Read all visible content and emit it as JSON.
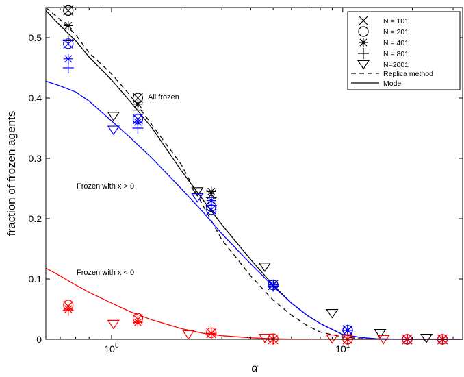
{
  "chart_data": {
    "type": "scatter",
    "xlabel": "α",
    "ylabel": "fraction of frozen agents",
    "xscale": "log",
    "xlim": [
      0.52,
      33
    ],
    "ylim": [
      0,
      0.55
    ],
    "yticks": [
      "0",
      "0.1",
      "0.2",
      "0.3",
      "0.4",
      "0.5"
    ],
    "xticks": [
      {
        "value": 1,
        "base": "10",
        "exp": "0"
      },
      {
        "value": 10,
        "base": "10",
        "exp": "1"
      }
    ],
    "grid": false,
    "legend_position": "top-right",
    "legend": [
      {
        "label": "N = 101",
        "marker": "x"
      },
      {
        "label": "N = 201",
        "marker": "circle"
      },
      {
        "label": "N = 401",
        "marker": "star"
      },
      {
        "label": "N = 801",
        "marker": "plus"
      },
      {
        "label": "N=2001",
        "marker": "triangle-down"
      },
      {
        "label": "Replica method",
        "line": "dashed"
      },
      {
        "label": "Model",
        "line": "solid"
      }
    ],
    "annotations": [
      {
        "text": "All frozen",
        "x": 1.55,
        "y": 0.4
      },
      {
        "text": "Frozen with x > 0",
        "x": 0.62,
        "y": 0.245
      },
      {
        "text": "Frozen with x < 0",
        "x": 0.62,
        "y": 0.11
      }
    ],
    "colors": {
      "all": "#000000",
      "positive": "#0000ff",
      "negative": "#ff0000"
    },
    "curves": [
      {
        "name": "Replica method",
        "color": "#000000",
        "dash": true,
        "x": [
          0.52,
          0.6,
          0.7,
          0.8,
          1.0,
          1.2,
          1.5,
          2.0,
          2.5,
          3.0,
          4.0,
          5.0,
          6.0,
          7.0,
          8.0,
          10.0,
          12.0,
          14.0
        ],
        "y": [
          0.55,
          0.53,
          0.505,
          0.475,
          0.44,
          0.405,
          0.355,
          0.29,
          0.22,
          0.165,
          0.105,
          0.065,
          0.04,
          0.023,
          0.012,
          0.004,
          0.001,
          0.0
        ]
      },
      {
        "name": "Model",
        "color": "#000000",
        "dash": false,
        "x": [
          0.52,
          0.6,
          0.7,
          0.8,
          1.0,
          1.2,
          1.5,
          2.0,
          2.5,
          3.0,
          4.0,
          5.0,
          6.0,
          7.0,
          8.0,
          10.0,
          12.0,
          14.0,
          20.0,
          33.0
        ],
        "y": [
          0.545,
          0.52,
          0.495,
          0.468,
          0.43,
          0.395,
          0.35,
          0.28,
          0.23,
          0.19,
          0.132,
          0.09,
          0.06,
          0.04,
          0.026,
          0.008,
          0.003,
          0.0008,
          0.0,
          0.0
        ]
      },
      {
        "name": "Frozen with x > 0",
        "color": "#0000ff",
        "dash": false,
        "x": [
          0.52,
          0.6,
          0.7,
          0.8,
          1.0,
          1.2,
          1.5,
          2.0,
          2.5,
          3.0,
          4.0,
          5.0,
          6.0,
          7.0,
          8.0,
          10.0,
          12.0,
          14.0,
          20.0,
          33.0
        ],
        "y": [
          0.428,
          0.42,
          0.41,
          0.395,
          0.362,
          0.335,
          0.3,
          0.25,
          0.21,
          0.175,
          0.125,
          0.088,
          0.06,
          0.04,
          0.026,
          0.008,
          0.003,
          0.0008,
          0.0,
          0.0
        ]
      },
      {
        "name": "Frozen with x < 0",
        "color": "#ff0000",
        "dash": false,
        "x": [
          0.52,
          0.6,
          0.7,
          0.8,
          1.0,
          1.2,
          1.5,
          2.0,
          2.5,
          3.0,
          4.0,
          5.0,
          6.0,
          8.0,
          10.0,
          15.0,
          33.0
        ],
        "y": [
          0.118,
          0.105,
          0.09,
          0.078,
          0.06,
          0.046,
          0.032,
          0.018,
          0.01,
          0.006,
          0.0025,
          0.001,
          0.0004,
          0.0001,
          0.0,
          0.0,
          0.0
        ]
      }
    ],
    "series": [
      {
        "group": "all",
        "color": "#000000",
        "marker": "x",
        "points": [
          [
            0.65,
            0.545
          ],
          [
            1.3,
            0.4
          ],
          [
            2.7,
            0.24
          ],
          [
            5.0,
            0.09
          ],
          [
            10.5,
            0.015
          ],
          [
            19.0,
            0.0
          ],
          [
            27.0,
            0.0
          ]
        ]
      },
      {
        "group": "all",
        "color": "#000000",
        "marker": "circle",
        "points": [
          [
            0.65,
            0.545
          ],
          [
            1.3,
            0.4
          ],
          [
            2.7,
            0.22
          ],
          [
            5.0,
            0.09
          ],
          [
            10.5,
            0.015
          ],
          [
            19.0,
            0.0
          ],
          [
            27.0,
            0.0
          ]
        ]
      },
      {
        "group": "all",
        "color": "#000000",
        "marker": "star",
        "points": [
          [
            0.65,
            0.52
          ],
          [
            1.3,
            0.39
          ],
          [
            2.7,
            0.245
          ],
          [
            5.0,
            0.09
          ],
          [
            10.5,
            0.015
          ],
          [
            19.0,
            0.0
          ],
          [
            27.0,
            0.0
          ]
        ]
      },
      {
        "group": "all",
        "color": "#000000",
        "marker": "plus",
        "points": [
          [
            0.65,
            0.495
          ],
          [
            1.3,
            0.38
          ],
          [
            2.7,
            0.235
          ],
          [
            5.0,
            0.09
          ],
          [
            10.5,
            0.015
          ],
          [
            19.0,
            0.0
          ],
          [
            27.0,
            0.0
          ]
        ]
      },
      {
        "group": "all",
        "color": "#000000",
        "marker": "triangle-down",
        "points": [
          [
            1.02,
            0.37
          ],
          [
            2.35,
            0.245
          ],
          [
            4.6,
            0.12
          ],
          [
            9.0,
            0.043
          ],
          [
            14.5,
            0.01
          ],
          [
            23.0,
            0.002
          ]
        ]
      },
      {
        "group": "positive",
        "color": "#0000ff",
        "marker": "x",
        "points": [
          [
            0.65,
            0.49
          ],
          [
            1.3,
            0.365
          ],
          [
            2.7,
            0.215
          ],
          [
            5.0,
            0.09
          ],
          [
            10.5,
            0.015
          ],
          [
            19.0,
            0.0
          ],
          [
            27.0,
            0.0
          ]
        ]
      },
      {
        "group": "positive",
        "color": "#0000ff",
        "marker": "circle",
        "points": [
          [
            0.65,
            0.49
          ],
          [
            1.3,
            0.365
          ],
          [
            2.7,
            0.215
          ],
          [
            5.0,
            0.09
          ],
          [
            10.5,
            0.015
          ],
          [
            19.0,
            0.0
          ],
          [
            27.0,
            0.0
          ]
        ]
      },
      {
        "group": "positive",
        "color": "#0000ff",
        "marker": "star",
        "points": [
          [
            0.65,
            0.465
          ],
          [
            1.3,
            0.36
          ],
          [
            2.7,
            0.23
          ],
          [
            5.0,
            0.09
          ],
          [
            10.5,
            0.015
          ],
          [
            19.0,
            0.0
          ],
          [
            27.0,
            0.0
          ]
        ]
      },
      {
        "group": "positive",
        "color": "#0000ff",
        "marker": "plus",
        "points": [
          [
            0.65,
            0.45
          ],
          [
            1.3,
            0.35
          ],
          [
            2.7,
            0.222
          ],
          [
            5.0,
            0.088
          ],
          [
            10.5,
            0.015
          ],
          [
            19.0,
            0.0
          ],
          [
            27.0,
            0.0
          ]
        ]
      },
      {
        "group": "positive",
        "color": "#0000ff",
        "marker": "triangle-down",
        "points": [
          [
            1.02,
            0.347
          ],
          [
            2.35,
            0.235
          ]
        ]
      },
      {
        "group": "negative",
        "color": "#ff0000",
        "marker": "x",
        "points": [
          [
            0.65,
            0.055
          ],
          [
            1.3,
            0.033
          ],
          [
            2.7,
            0.01
          ],
          [
            5.0,
            0.0
          ],
          [
            10.5,
            0.0
          ],
          [
            19.0,
            0.0
          ],
          [
            27.0,
            0.0
          ]
        ]
      },
      {
        "group": "negative",
        "color": "#ff0000",
        "marker": "circle",
        "points": [
          [
            0.65,
            0.057
          ],
          [
            1.3,
            0.035
          ],
          [
            2.7,
            0.011
          ],
          [
            5.0,
            0.001
          ],
          [
            10.5,
            0.0
          ],
          [
            19.0,
            0.0
          ],
          [
            27.0,
            0.0
          ]
        ]
      },
      {
        "group": "negative",
        "color": "#ff0000",
        "marker": "star",
        "points": [
          [
            0.65,
            0.05
          ],
          [
            1.3,
            0.028
          ],
          [
            2.7,
            0.01
          ],
          [
            5.0,
            0.0
          ],
          [
            10.5,
            0.0
          ],
          [
            19.0,
            0.0
          ],
          [
            27.0,
            0.0
          ]
        ]
      },
      {
        "group": "negative",
        "color": "#ff0000",
        "marker": "plus",
        "points": [
          [
            0.65,
            0.048
          ],
          [
            1.3,
            0.03
          ],
          [
            2.7,
            0.009
          ],
          [
            5.0,
            0.0
          ],
          [
            10.5,
            0.0
          ],
          [
            19.0,
            0.0
          ],
          [
            27.0,
            0.0
          ]
        ]
      },
      {
        "group": "negative",
        "color": "#ff0000",
        "marker": "triangle-down",
        "points": [
          [
            1.02,
            0.025
          ],
          [
            2.15,
            0.008
          ],
          [
            4.6,
            0.002
          ],
          [
            9.0,
            0.001
          ],
          [
            15.0,
            0.0
          ]
        ]
      }
    ]
  }
}
